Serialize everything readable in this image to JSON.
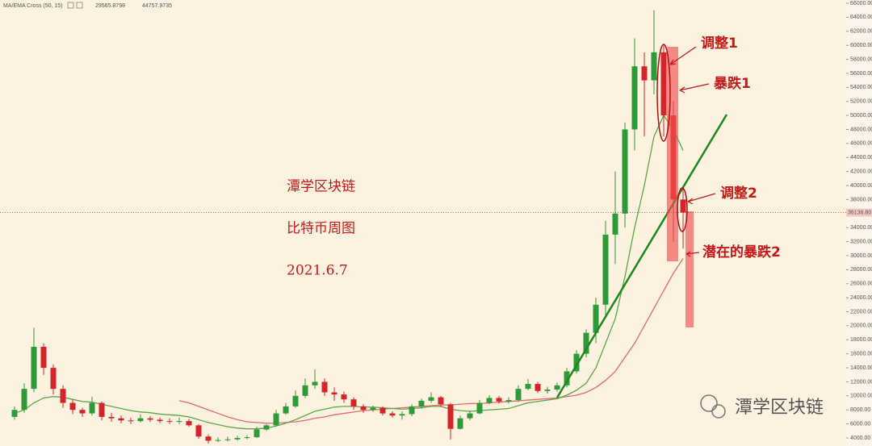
{
  "chart_data": {
    "type": "candlestick",
    "legend_title": "MA/EMA Cross (50, 15)",
    "indicator_values": [
      29565.8798,
      44757.9735
    ],
    "open": [
      7000,
      8000,
      11000,
      17000,
      14000,
      11000,
      9000,
      8000,
      7500,
      9000,
      7000,
      6800,
      6500,
      6400,
      6800,
      6600,
      6400,
      6300,
      6400,
      5800,
      4200,
      3600,
      3700,
      3800,
      4000,
      4100,
      5200,
      5800,
      7500,
      8500,
      10000,
      11500,
      12000,
      10500,
      10200,
      9500,
      8500,
      8000,
      8300,
      7500,
      7200,
      7400,
      8500,
      9300,
      9800,
      8800,
      5300,
      6800,
      7500,
      9000,
      9700,
      9200,
      9400,
      11000,
      11700,
      10700,
      10900,
      11500,
      13500,
      16000,
      19000,
      23000,
      33000,
      36000,
      48000,
      57000,
      55000,
      59000,
      50000,
      38000
    ],
    "high": [
      8500,
      11800,
      19700,
      17500,
      14500,
      11500,
      9500,
      8300,
      9900,
      9200,
      7600,
      7200,
      6900,
      7400,
      7100,
      6900,
      6800,
      6900,
      6700,
      6000,
      4500,
      4100,
      4200,
      4300,
      4400,
      5600,
      6000,
      8000,
      9000,
      10800,
      12500,
      13800,
      12500,
      11200,
      10600,
      9800,
      8800,
      8600,
      8500,
      7800,
      7800,
      8800,
      9600,
      10500,
      10000,
      9000,
      7200,
      7900,
      9400,
      10100,
      10000,
      9800,
      11500,
      12400,
      12000,
      11300,
      11900,
      14000,
      16500,
      19500,
      24000,
      35000,
      42000,
      49000,
      61000,
      59000,
      65000,
      60000,
      52000,
      40000
    ],
    "low": [
      6600,
      7600,
      10500,
      13000,
      10200,
      8300,
      7400,
      7000,
      7200,
      6500,
      6300,
      6100,
      6000,
      6200,
      6300,
      6100,
      6000,
      6000,
      5600,
      3900,
      3200,
      3400,
      3500,
      3600,
      3800,
      4000,
      5000,
      5600,
      7300,
      8300,
      9700,
      11000,
      10000,
      9300,
      9000,
      8000,
      7600,
      7700,
      7200,
      6900,
      6600,
      7100,
      8200,
      9000,
      8400,
      3800,
      5200,
      6500,
      7400,
      8800,
      8900,
      8900,
      9100,
      10800,
      10400,
      10300,
      10600,
      11200,
      13200,
      15500,
      17500,
      21000,
      28800,
      34000,
      45000,
      47000,
      53000,
      47000,
      32000,
      31000
    ],
    "close": [
      8000,
      11000,
      17000,
      14000,
      11000,
      9000,
      8000,
      7500,
      9000,
      7000,
      6800,
      6500,
      6400,
      6800,
      6600,
      6400,
      6300,
      6400,
      5800,
      4200,
      3600,
      3700,
      3800,
      4000,
      4100,
      5200,
      5800,
      7500,
      8500,
      10000,
      11500,
      12000,
      10500,
      10200,
      9500,
      8500,
      8000,
      8300,
      7500,
      7200,
      7400,
      8500,
      9300,
      9800,
      8800,
      5300,
      6800,
      7500,
      9000,
      9700,
      9200,
      9400,
      11000,
      11700,
      10700,
      10900,
      11500,
      13500,
      16000,
      19000,
      23000,
      33000,
      36000,
      48000,
      57000,
      55000,
      59000,
      50000,
      38000,
      36136.8
    ],
    "up_color": "#2e9b3a",
    "down_color": "#d6252a",
    "lines": [
      {
        "color": "#e26b6b",
        "values": [
          null,
          null,
          null,
          null,
          null,
          null,
          null,
          null,
          null,
          null,
          null,
          null,
          null,
          null,
          null,
          null,
          null,
          9300,
          9000,
          8500,
          8000,
          7500,
          7000,
          6600,
          6300,
          6200,
          6100,
          6100,
          6200,
          6300,
          6500,
          6800,
          7000,
          7300,
          7500,
          7700,
          7900,
          8000,
          8100,
          8200,
          8300,
          8400,
          8500,
          8600,
          8700,
          8700,
          8800,
          8900,
          8900,
          9000,
          9100,
          9200,
          9300,
          9400,
          9500,
          9600,
          9700,
          9900,
          10100,
          10500,
          11200,
          12200,
          13500,
          15500,
          17500,
          20000,
          22500,
          25000,
          27500,
          29600
        ]
      },
      {
        "color": "#5aa84a",
        "values": [
          7500,
          8000,
          9000,
          9700,
          9900,
          9800,
          9500,
          9200,
          9100,
          8800,
          8500,
          8200,
          7900,
          7700,
          7600,
          7400,
          7300,
          7200,
          7000,
          6600,
          6200,
          5900,
          5600,
          5400,
          5300,
          5300,
          5400,
          5700,
          6100,
          6600,
          7200,
          7800,
          8100,
          8400,
          8500,
          8500,
          8400,
          8400,
          8300,
          8200,
          8100,
          8200,
          8300,
          8500,
          8500,
          8100,
          7900,
          7800,
          7900,
          8000,
          8100,
          8200,
          8600,
          9000,
          9200,
          9400,
          9600,
          10100,
          10800,
          11800,
          14000,
          17500,
          21000,
          27000,
          34000,
          40000,
          47000,
          50000,
          48000,
          45000
        ]
      }
    ],
    "last_price": {
      "value": 36136.8,
      "label": "36136.80"
    },
    "ylim": [
      4000,
      66000
    ],
    "yticks": [
      {
        "value": 4000,
        "label": "4000.00"
      },
      {
        "value": 6000,
        "label": "6000.00"
      },
      {
        "value": 8000,
        "label": "8000.00"
      },
      {
        "value": 10000,
        "label": "10000.00"
      },
      {
        "value": 12000,
        "label": "12000.00"
      },
      {
        "value": 14000,
        "label": "14000.00"
      },
      {
        "value": 16000,
        "label": "16000.00"
      },
      {
        "value": 18000,
        "label": "18000.00"
      },
      {
        "value": 20000,
        "label": "20000.00"
      },
      {
        "value": 22000,
        "label": "22000.00"
      },
      {
        "value": 24000,
        "label": "24000.00"
      },
      {
        "value": 26000,
        "label": "26000.00"
      },
      {
        "value": 28000,
        "label": "28000.00"
      },
      {
        "value": 30000,
        "label": "30000.00"
      },
      {
        "value": 32000,
        "label": "32000.00"
      },
      {
        "value": 34000,
        "label": "34000.00"
      },
      {
        "value": 38000,
        "label": "38000.00"
      },
      {
        "value": 40000,
        "label": "40000.00"
      },
      {
        "value": 42000,
        "label": "42000.00"
      },
      {
        "value": 44000,
        "label": "44000.00"
      },
      {
        "value": 46000,
        "label": "46000.00"
      },
      {
        "value": 48000,
        "label": "48000.00"
      },
      {
        "value": 50000,
        "label": "50000.00"
      },
      {
        "value": 52000,
        "label": "52000.00"
      },
      {
        "value": 54000,
        "label": "54000.00"
      },
      {
        "value": 56000,
        "label": "56000.00"
      },
      {
        "value": 58000,
        "label": "58000.00"
      },
      {
        "value": 60000,
        "label": "60000.00"
      },
      {
        "value": 62000,
        "label": "62000.00"
      },
      {
        "value": 64000,
        "label": "64000.00"
      },
      {
        "value": 66000,
        "label": "66000.00"
      }
    ],
    "annotations": {
      "name": "潭学区块链",
      "subtitle": "比特币周图",
      "date": "2021.6.7",
      "adjust1": "调整1",
      "crash1": "暴跌1",
      "adjust2": "调整2",
      "crash2": "潜在的暴跌2"
    },
    "watermark": "潭学区块链"
  }
}
